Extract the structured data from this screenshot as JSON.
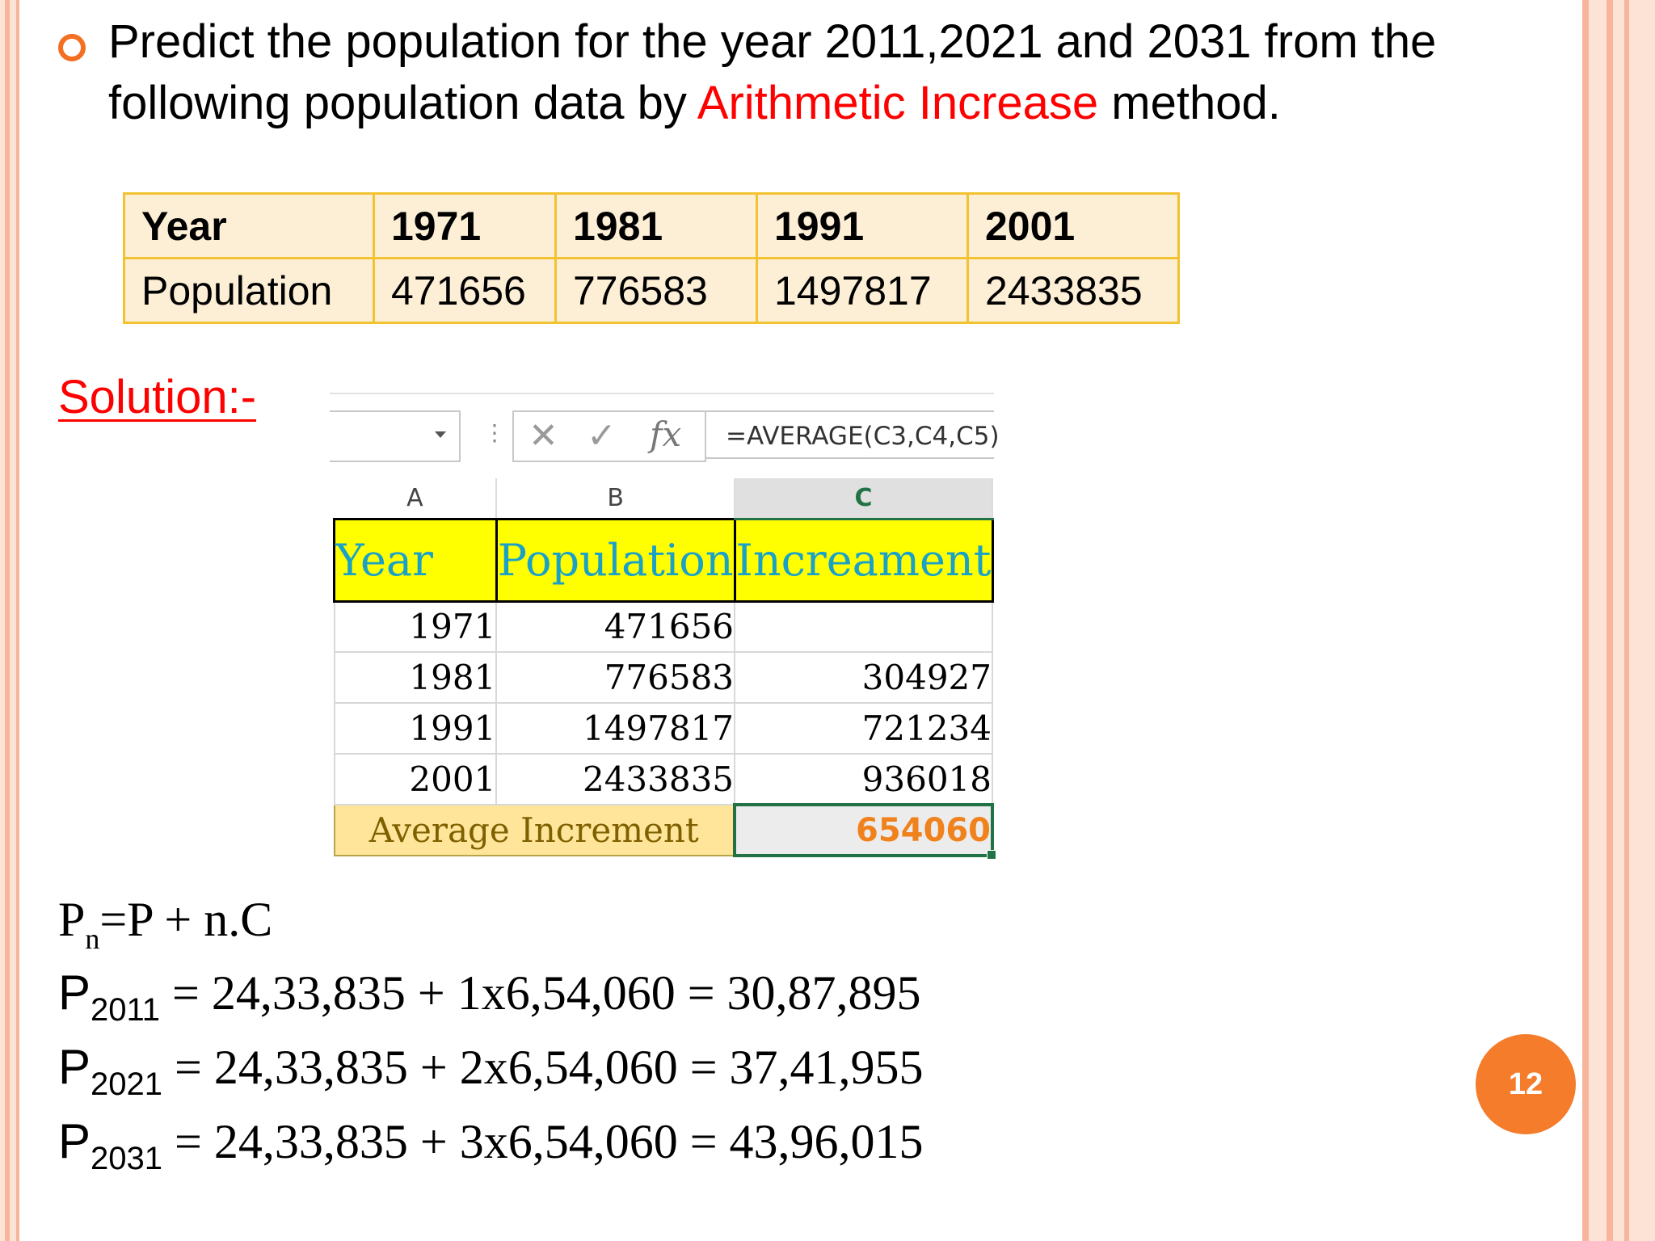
{
  "heading": {
    "text_before": "Predict the population for the year 2011,2021 and 2031 from the following population data by ",
    "highlight": "Arithmetic Increase",
    "text_after": " method."
  },
  "data_table": {
    "header": [
      "Year",
      "1971",
      "1981",
      "1991",
      "2001"
    ],
    "row": [
      "Population",
      "471656",
      "776583",
      "1497817",
      "2433835"
    ]
  },
  "solution_label": "Solution:-",
  "excel": {
    "formula": "=AVERAGE(C3,C4,C5)",
    "columns": [
      "A",
      "B",
      "C"
    ],
    "header_row": [
      "Year",
      "Population",
      "Increament"
    ],
    "rows": [
      [
        "1971",
        "471656",
        ""
      ],
      [
        "1981",
        "776583",
        "304927"
      ],
      [
        "1991",
        "1497817",
        "721234"
      ],
      [
        "2001",
        "2433835",
        "936018"
      ]
    ],
    "average_label": "Average Increment",
    "average_value": "654060"
  },
  "equations": {
    "general": {
      "lhs": "P",
      "sub": "n",
      "rhs": "=P + n.C"
    },
    "lines": [
      {
        "p": "P",
        "sub": "2011",
        "rhs": " = 24,33,835 + 1x6,54,060 = 30,87,895"
      },
      {
        "p": "P",
        "sub": "2021",
        "rhs": " = 24,33,835 + 2x6,54,060 = 37,41,955"
      },
      {
        "p": "P",
        "sub": "2031",
        "rhs": " = 24,33,835 + 3x6,54,060 = 43,96,015"
      }
    ]
  },
  "page_number": "12"
}
